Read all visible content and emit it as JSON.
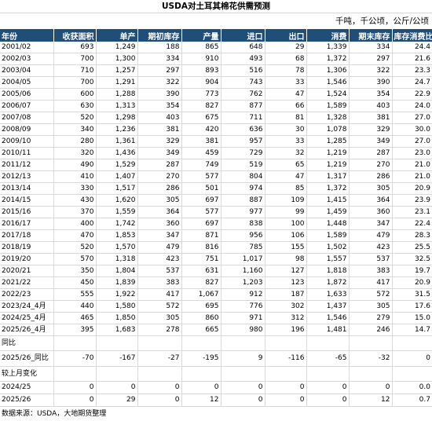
{
  "title": "USDA对土耳其棉花供需预测",
  "unit": "千吨，千公顷，公斤/公顷",
  "headers": [
    "年份",
    "收获面积",
    "单产",
    "期初库存",
    "产量",
    "进口",
    "出口",
    "消费",
    "期末库存",
    "库存消费比"
  ],
  "rows": [
    [
      "2001/02",
      "693",
      "1,249",
      "188",
      "865",
      "648",
      "29",
      "1,339",
      "334",
      "24.4"
    ],
    [
      "2002/03",
      "700",
      "1,300",
      "334",
      "910",
      "493",
      "68",
      "1,372",
      "297",
      "21.6"
    ],
    [
      "2003/04",
      "710",
      "1,257",
      "297",
      "893",
      "516",
      "78",
      "1,306",
      "322",
      "23.3"
    ],
    [
      "2004/05",
      "700",
      "1,291",
      "322",
      "904",
      "743",
      "33",
      "1,546",
      "390",
      "24.7"
    ],
    [
      "2005/06",
      "600",
      "1,288",
      "390",
      "773",
      "762",
      "47",
      "1,524",
      "354",
      "22.9"
    ],
    [
      "2006/07",
      "630",
      "1,313",
      "354",
      "827",
      "877",
      "66",
      "1,589",
      "403",
      "24.0"
    ],
    [
      "2007/08",
      "520",
      "1,298",
      "403",
      "675",
      "711",
      "81",
      "1,328",
      "381",
      "27.0"
    ],
    [
      "2008/09",
      "340",
      "1,236",
      "381",
      "420",
      "636",
      "30",
      "1,078",
      "329",
      "30.0"
    ],
    [
      "2009/10",
      "280",
      "1,361",
      "329",
      "381",
      "957",
      "33",
      "1,285",
      "349",
      "27.0"
    ],
    [
      "2010/11",
      "320",
      "1,436",
      "349",
      "459",
      "729",
      "32",
      "1,219",
      "287",
      "23.0"
    ],
    [
      "2011/12",
      "490",
      "1,529",
      "287",
      "749",
      "519",
      "65",
      "1,219",
      "270",
      "21.0"
    ],
    [
      "2012/13",
      "410",
      "1,407",
      "270",
      "577",
      "804",
      "47",
      "1,317",
      "286",
      "21.0"
    ],
    [
      "2013/14",
      "330",
      "1,517",
      "286",
      "501",
      "974",
      "85",
      "1,372",
      "305",
      "20.9"
    ],
    [
      "2014/15",
      "430",
      "1,620",
      "305",
      "697",
      "887",
      "109",
      "1,415",
      "364",
      "23.9"
    ],
    [
      "2015/16",
      "370",
      "1,559",
      "364",
      "577",
      "977",
      "99",
      "1,459",
      "360",
      "23.1"
    ],
    [
      "2016/17",
      "400",
      "1,742",
      "360",
      "697",
      "838",
      "100",
      "1,448",
      "347",
      "22.4"
    ],
    [
      "2017/18",
      "470",
      "1,853",
      "347",
      "871",
      "956",
      "106",
      "1,589",
      "479",
      "28.3"
    ],
    [
      "2018/19",
      "520",
      "1,570",
      "479",
      "816",
      "785",
      "155",
      "1,502",
      "423",
      "25.5"
    ],
    [
      "2019/20",
      "570",
      "1,318",
      "423",
      "751",
      "1,017",
      "98",
      "1,557",
      "537",
      "32.5"
    ],
    [
      "2020/21",
      "350",
      "1,804",
      "537",
      "631",
      "1,160",
      "127",
      "1,818",
      "383",
      "19.7"
    ],
    [
      "2021/22",
      "450",
      "1,839",
      "383",
      "827",
      "1,203",
      "123",
      "1,872",
      "417",
      "20.9"
    ],
    [
      "2022/23",
      "555",
      "1,922",
      "417",
      "1,067",
      "912",
      "187",
      "1,633",
      "572",
      "31.5"
    ],
    [
      "2023/24_4月",
      "440",
      "1,580",
      "572",
      "695",
      "776",
      "302",
      "1,437",
      "305",
      "17.6"
    ],
    [
      "2024/25_4月",
      "465",
      "1,850",
      "305",
      "860",
      "971",
      "312",
      "1,546",
      "279",
      "15.0"
    ],
    [
      "2025/26_4月",
      "395",
      "1,683",
      "278",
      "665",
      "980",
      "196",
      "1,481",
      "246",
      "14.7"
    ]
  ],
  "section_yoy": "同比",
  "yoy_row": [
    "2025/26_同比",
    "-70",
    "-167",
    "-27",
    "-195",
    "9",
    "-116",
    "-65",
    "-32",
    "0"
  ],
  "section_mom": "较上月变化",
  "mom_rows": [
    [
      "2024/25",
      "0",
      "0",
      "0",
      "0",
      "0",
      "0",
      "0",
      "0",
      "0.0"
    ],
    [
      "2025/26",
      "0",
      "29",
      "0",
      "12",
      "0",
      "0",
      "0",
      "12",
      "0.7"
    ]
  ],
  "source": "数据来源：USDA，大地期货整理",
  "colors": {
    "header_bg": "#1f4e79",
    "header_text": "#ffffff",
    "grid": "#d9d9d9"
  }
}
